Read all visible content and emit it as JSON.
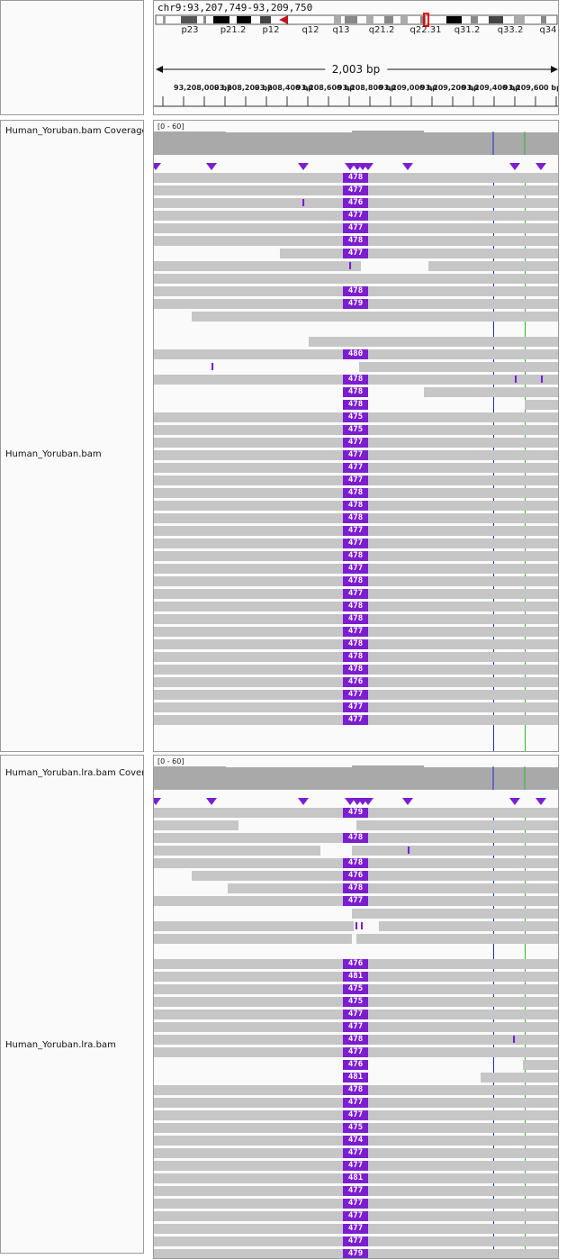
{
  "header": {
    "locus": "chr9:93,207,749-93,209,750",
    "bands": [
      "p23",
      "p21.2",
      "p12",
      "q12",
      "q13",
      "q21.2",
      "q22.31",
      "q31.2",
      "q33.2",
      "q34"
    ],
    "span": "2,003 bp",
    "ticks": [
      "93,208,000 bp",
      "93,208,200 bp",
      "93,208,400 bp",
      "93,208,600 bp",
      "93,208,800 bp",
      "93,209,000 bp",
      "93,209,200 bp",
      "93,209,400 bp",
      "93,209,600 bp"
    ]
  },
  "tracks": [
    {
      "coverage_label": "Human_Yoruban.bam Coverage",
      "coverage_range": "[0 - 60]",
      "alignment_label": "Human_Yoruban.bam",
      "rows": [
        {
          "badge": "478"
        },
        {
          "badge": "477"
        },
        {
          "badge": "476",
          "ins": [
            336
          ]
        },
        {
          "badge": "477"
        },
        {
          "badge": "477"
        },
        {
          "badge": "478"
        },
        {
          "badge": "477"
        },
        {
          "badge": null,
          "ins": [
            388
          ]
        },
        {
          "badge": null
        },
        {
          "badge": "478"
        },
        {
          "badge": "479"
        },
        {
          "badge": null
        },
        {
          "badge": null
        },
        {
          "badge": null
        },
        {
          "badge": "480"
        },
        {
          "badge": null,
          "ins": [
            235
          ]
        },
        {
          "badge": "478",
          "ins": [
            572,
            601
          ]
        },
        {
          "badge": "478"
        },
        {
          "badge": "478"
        },
        {
          "badge": "475"
        },
        {
          "badge": "475"
        },
        {
          "badge": "477"
        },
        {
          "badge": "477"
        },
        {
          "badge": "477"
        },
        {
          "badge": "477"
        },
        {
          "badge": "478"
        },
        {
          "badge": "478"
        },
        {
          "badge": "478"
        },
        {
          "badge": "477"
        },
        {
          "badge": "477"
        },
        {
          "badge": "478"
        },
        {
          "badge": "477"
        },
        {
          "badge": "478"
        },
        {
          "badge": "477"
        },
        {
          "badge": "478"
        },
        {
          "badge": "478"
        },
        {
          "badge": "477"
        },
        {
          "badge": "478"
        },
        {
          "badge": "478"
        },
        {
          "badge": "478"
        },
        {
          "badge": "476"
        },
        {
          "badge": "477"
        },
        {
          "badge": "477"
        },
        {
          "badge": "477"
        }
      ]
    },
    {
      "coverage_label": "Human_Yoruban.lra.bam Coverage",
      "coverage_range": "[0 - 60]",
      "alignment_label": "Human_Yoruban.lra.bam",
      "rows": [
        {
          "badge": "479"
        },
        {
          "badge": null
        },
        {
          "badge": "478"
        },
        {
          "badge": null,
          "ins": [
            453
          ]
        },
        {
          "badge": "478"
        },
        {
          "badge": "476"
        },
        {
          "badge": "478"
        },
        {
          "badge": "477"
        },
        {
          "badge": null
        },
        {
          "badge": null,
          "ins": [
            395,
            401
          ]
        },
        {
          "badge": null
        },
        {
          "badge": null
        },
        {
          "badge": "476"
        },
        {
          "badge": "481"
        },
        {
          "badge": "475"
        },
        {
          "badge": "475"
        },
        {
          "badge": "477"
        },
        {
          "badge": "477"
        },
        {
          "badge": "478",
          "ins": [
            570
          ]
        },
        {
          "badge": "477"
        },
        {
          "badge": "476"
        },
        {
          "badge": "481"
        },
        {
          "badge": "478"
        },
        {
          "badge": "477"
        },
        {
          "badge": "477"
        },
        {
          "badge": "475"
        },
        {
          "badge": "474"
        },
        {
          "badge": "477"
        },
        {
          "badge": "477"
        },
        {
          "badge": "481"
        },
        {
          "badge": "477"
        },
        {
          "badge": "477"
        },
        {
          "badge": "477"
        },
        {
          "badge": "477"
        },
        {
          "badge": "477"
        },
        {
          "badge": "479"
        }
      ]
    }
  ],
  "insertion_glyph": "I"
}
